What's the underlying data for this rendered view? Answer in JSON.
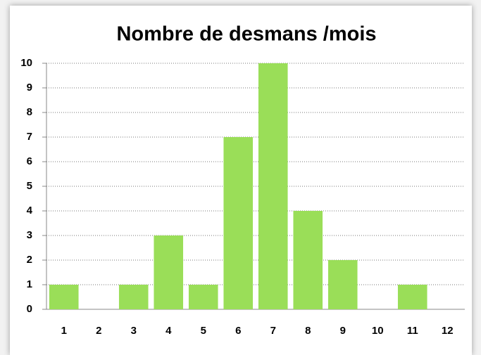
{
  "chart_data": {
    "type": "bar",
    "title": "Nombre de desmans /mois",
    "categories": [
      "1",
      "2",
      "3",
      "4",
      "5",
      "6",
      "7",
      "8",
      "9",
      "10",
      "11",
      "12"
    ],
    "values": [
      1,
      0,
      1,
      3,
      1,
      7,
      10,
      4,
      2,
      0,
      1,
      0
    ],
    "color": "#9ade58",
    "ylim": [
      0,
      10
    ],
    "yticks": [
      0,
      1,
      2,
      3,
      4,
      5,
      6,
      7,
      8,
      9,
      10
    ],
    "grid": true
  }
}
